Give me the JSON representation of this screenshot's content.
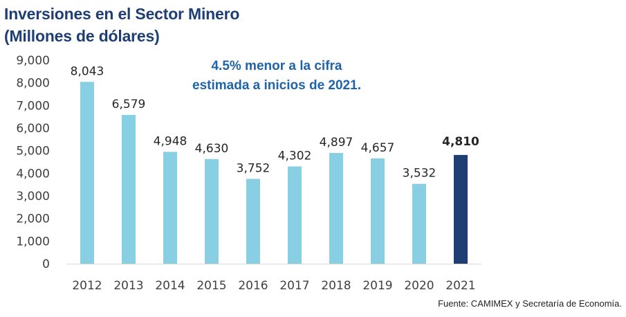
{
  "chart_data": {
    "type": "bar",
    "title": [
      "Inversiones en el Sector Minero",
      "(Millones de dólares)"
    ],
    "categories": [
      "2012",
      "2013",
      "2014",
      "2015",
      "2016",
      "2017",
      "2018",
      "2019",
      "2020",
      "2021"
    ],
    "values": [
      8043,
      6579,
      4948,
      4630,
      3752,
      4302,
      4897,
      4657,
      3532,
      4810
    ],
    "value_labels": [
      "8,043",
      "6,579",
      "4,948",
      "4,630",
      "3,752",
      "4,302",
      "4,897",
      "4,657",
      "3,532",
      "4,810"
    ],
    "ylim": [
      0,
      9000
    ],
    "yticks": [
      0,
      1000,
      2000,
      3000,
      4000,
      5000,
      6000,
      7000,
      8000,
      9000
    ],
    "ytick_labels": [
      "0",
      "1,000",
      "2,000",
      "3,000",
      "4,000",
      "5,000",
      "6,000",
      "7,000",
      "8,000",
      "9,000"
    ],
    "grid": false,
    "highlight_index": 9,
    "annotation": [
      "4.5% menor a la cifra",
      "estimada a inicios de 2021."
    ]
  },
  "colors": {
    "title": "#1f3f74",
    "bar": "#89cfe3",
    "highlight_bar": "#1f3f74",
    "highlight_label": "#1479c4",
    "annotation": "#1f63a8",
    "axis": "#d9d9d9"
  },
  "source": "Fuente: CAMIMEX y Secretaría de Economía."
}
